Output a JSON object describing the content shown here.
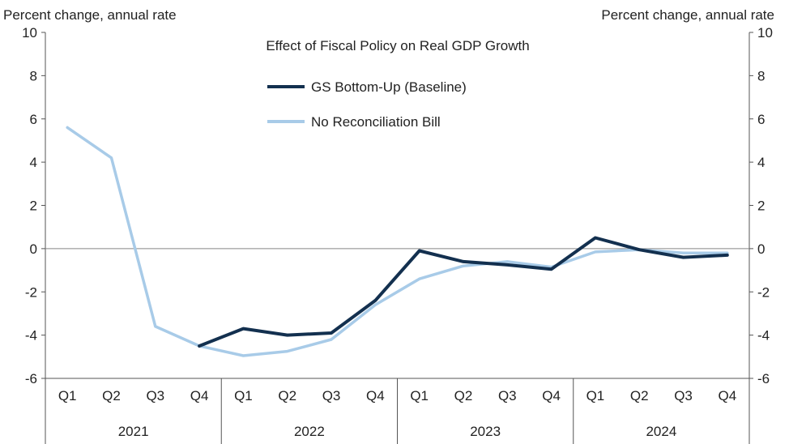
{
  "chart_data": {
    "type": "line",
    "title": "Effect of Fiscal Policy on Real GDP Growth",
    "ylabel_left": "Percent change, annual rate",
    "ylabel_right": "Percent change, annual rate",
    "ylim": [
      -6,
      10
    ],
    "yticks": [
      -6,
      -4,
      -2,
      0,
      2,
      4,
      6,
      8,
      10
    ],
    "grid": false,
    "zero_line": true,
    "legend_position": "top-center",
    "quarters": [
      "Q1",
      "Q2",
      "Q3",
      "Q4",
      "Q1",
      "Q2",
      "Q3",
      "Q4",
      "Q1",
      "Q2",
      "Q3",
      "Q4",
      "Q1",
      "Q2",
      "Q3",
      "Q4"
    ],
    "years": [
      "2021",
      "2022",
      "2023",
      "2024"
    ],
    "series": [
      {
        "name": "GS Bottom-Up (Baseline)",
        "color": "#13304f",
        "values": [
          null,
          null,
          null,
          -4.5,
          -3.7,
          -4.0,
          -3.9,
          -2.4,
          -0.1,
          -0.6,
          -0.75,
          -0.95,
          0.5,
          -0.05,
          -0.4,
          -0.3
        ]
      },
      {
        "name": "No Reconciliation Bill",
        "color": "#a8cbe8",
        "values": [
          5.6,
          4.2,
          -3.6,
          -4.5,
          -4.95,
          -4.75,
          -4.2,
          -2.6,
          -1.4,
          -0.8,
          -0.6,
          -0.85,
          -0.15,
          -0.05,
          -0.2,
          -0.2
        ]
      }
    ]
  }
}
